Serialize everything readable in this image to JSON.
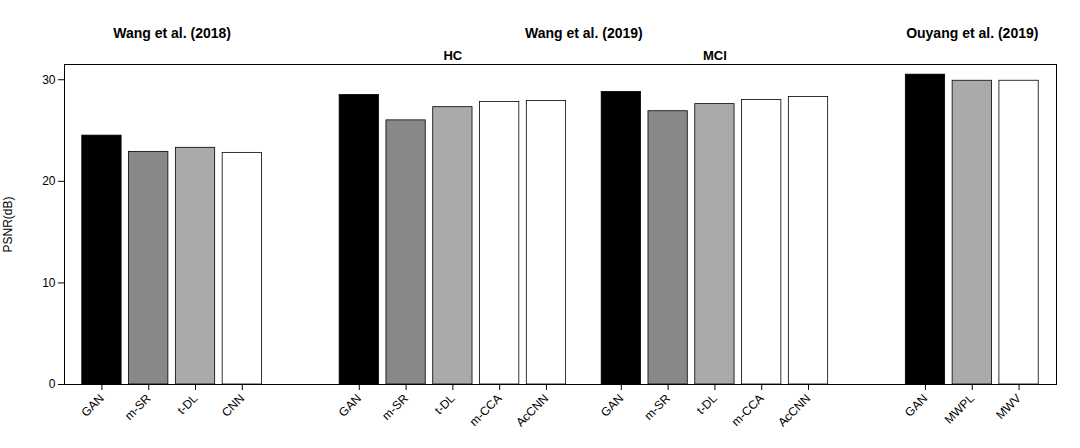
{
  "chart_data": {
    "type": "bar",
    "ylabel": "PSNR(dB)",
    "ylim": [
      0,
      31.5
    ],
    "yticks": [
      0,
      10,
      20,
      30
    ],
    "grid": false,
    "groups": [
      {
        "title": "Wang et al. (2018)",
        "panels": [
          {
            "categories": [
              "GAN",
              "m-SR",
              "t-DL",
              "CNN"
            ],
            "values": [
              24.5,
              22.9,
              23.3,
              22.8
            ],
            "colors": [
              "#000000",
              "#888888",
              "#aaaaaa",
              "#ffffff"
            ]
          }
        ]
      },
      {
        "title": "Wang et al. (2019)",
        "panels": [
          {
            "subtitle": "HC",
            "categories": [
              "GAN",
              "m-SR",
              "t-DL",
              "m-CCA",
              "AcCNN"
            ],
            "values": [
              28.5,
              26.0,
              27.3,
              27.8,
              27.9
            ],
            "colors": [
              "#000000",
              "#888888",
              "#aaaaaa",
              "#ffffff",
              "#ffffff"
            ]
          },
          {
            "subtitle": "MCI",
            "categories": [
              "GAN",
              "m-SR",
              "t-DL",
              "m-CCA",
              "AcCNN"
            ],
            "values": [
              28.8,
              26.9,
              27.6,
              28.0,
              28.3
            ],
            "colors": [
              "#000000",
              "#888888",
              "#aaaaaa",
              "#ffffff",
              "#ffffff"
            ]
          }
        ]
      },
      {
        "title": "Ouyang et al. (2019)",
        "panels": [
          {
            "categories": [
              "GAN",
              "MWPL",
              "MWV"
            ],
            "values": [
              30.5,
              29.9,
              29.9
            ],
            "colors": [
              "#000000",
              "#aaaaaa",
              "#ffffff"
            ]
          }
        ]
      }
    ]
  }
}
